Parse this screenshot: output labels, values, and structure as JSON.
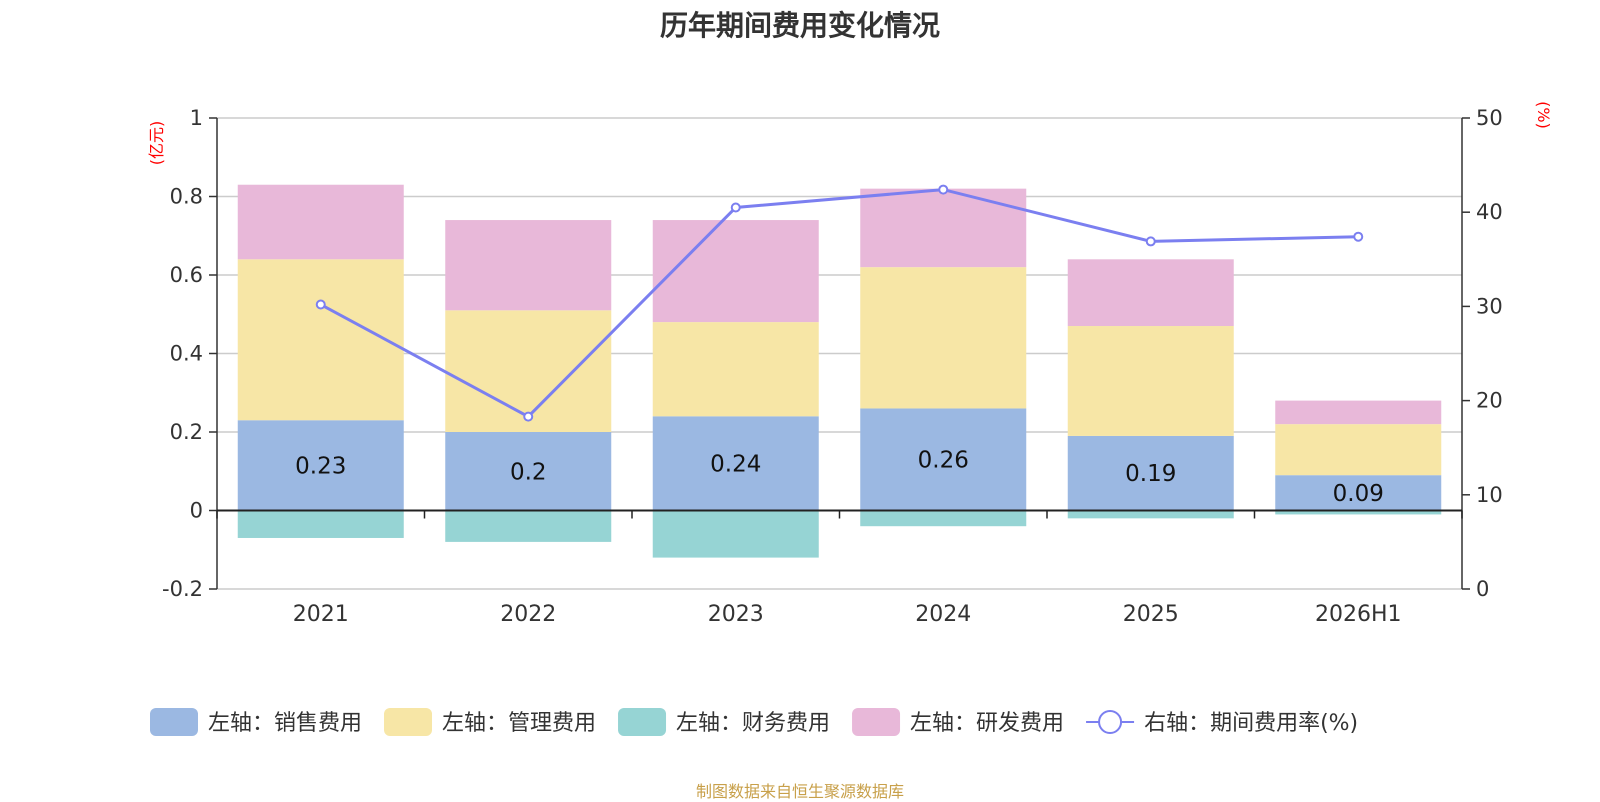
{
  "chart_data": {
    "type": "bar",
    "title": "历年期间费用变化情况",
    "categories": [
      "2021",
      "2022",
      "2023",
      "2024",
      "2025",
      "2026H1"
    ],
    "y_left": {
      "unit_label": "(亿元)",
      "min": -0.2,
      "max": 1,
      "ticks": [
        -0.2,
        0,
        0.2,
        0.4,
        0.6,
        0.8,
        1
      ]
    },
    "y_right": {
      "unit_label": "(%)",
      "min": 0,
      "max": 50,
      "ticks": [
        0,
        10,
        20,
        30,
        40,
        50
      ]
    },
    "grid": true,
    "stacked": true,
    "series": [
      {
        "name": "左轴：销售费用",
        "axis": "left",
        "type": "bar",
        "color": "#9bb8e2",
        "values": [
          0.23,
          0.2,
          0.24,
          0.26,
          0.19,
          0.09
        ],
        "labels": [
          "0.23",
          "0.2",
          "0.24",
          "0.26",
          "0.19",
          "0.09"
        ]
      },
      {
        "name": "左轴：管理费用",
        "axis": "left",
        "type": "bar",
        "color": "#f7e6a6",
        "values": [
          0.41,
          0.31,
          0.24,
          0.36,
          0.28,
          0.13
        ]
      },
      {
        "name": "左轴：财务费用",
        "axis": "left",
        "type": "bar",
        "color": "#96d4d4",
        "values": [
          -0.07,
          -0.08,
          -0.12,
          -0.04,
          -0.02,
          -0.01
        ]
      },
      {
        "name": "左轴：研发费用",
        "axis": "left",
        "type": "bar",
        "color": "#e8b8d9",
        "values": [
          0.19,
          0.23,
          0.26,
          0.2,
          0.17,
          0.06
        ]
      },
      {
        "name": "右轴：期间费用率(%)",
        "axis": "right",
        "type": "line",
        "color": "#7b7ff0",
        "values": [
          30.2,
          18.3,
          40.5,
          42.4,
          36.9,
          37.4
        ]
      }
    ],
    "legend_position": "bottom",
    "source": "制图数据来自恒生聚源数据库"
  }
}
